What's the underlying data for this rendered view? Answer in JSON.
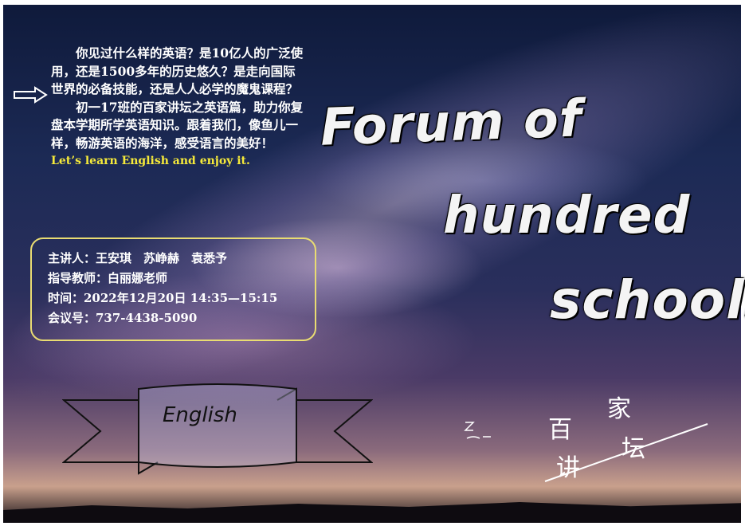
{
  "intro": {
    "p1": "你见过什么样的英语？是10亿人的广泛使用，还是1500多年的历史悠久？是走向国际世界的必备技能，还是人人必学的魔鬼课程？",
    "p2": "初一17班的百家讲坛之英语篇，助力你复盘本学期所学英语知识。跟着我们，像鱼儿一样，畅游英语的海洋，感受语言的美好！",
    "english": "Let’s learn English and enjoy it."
  },
  "info": {
    "speakers": "主讲人：王安琪　苏峥赫　袁悉予",
    "advisor": "指导教师：白丽娜老师",
    "time": "时间：2022年12月20日 14:35—15:15",
    "meeting": "会议号：737-4438-5090"
  },
  "title": {
    "line1": "Forum of",
    "line2": "hundred",
    "line3": "schools"
  },
  "ribbon": {
    "label": "English"
  },
  "logo": {
    "char1": "百",
    "char2": "家",
    "char3": "讲",
    "char4": "坛"
  },
  "colors": {
    "highlight_yellow": "#f6ea3a",
    "box_border": "#e9dc72"
  }
}
